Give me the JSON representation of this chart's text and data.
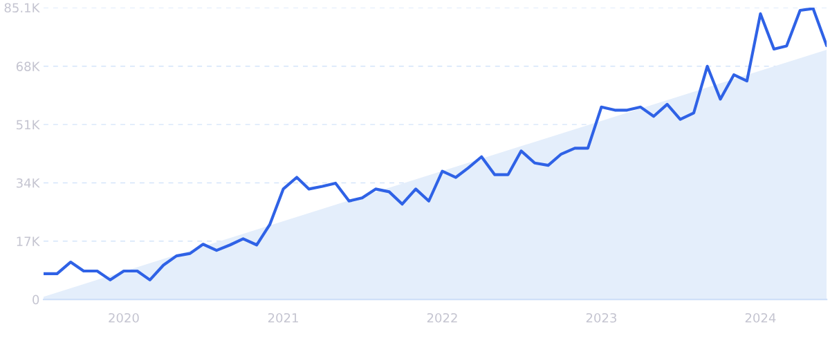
{
  "chart_data": {
    "type": "line",
    "x": [
      "2019-07",
      "2019-08",
      "2019-09",
      "2019-10",
      "2019-11",
      "2019-12",
      "2020-01",
      "2020-02",
      "2020-03",
      "2020-04",
      "2020-05",
      "2020-06",
      "2020-07",
      "2020-08",
      "2020-09",
      "2020-10",
      "2020-11",
      "2020-12",
      "2021-01",
      "2021-02",
      "2021-03",
      "2021-04",
      "2021-05",
      "2021-06",
      "2021-07",
      "2021-08",
      "2021-09",
      "2021-10",
      "2021-11",
      "2021-12",
      "2022-01",
      "2022-02",
      "2022-03",
      "2022-04",
      "2022-05",
      "2022-06",
      "2022-07",
      "2022-08",
      "2022-09",
      "2022-10",
      "2022-11",
      "2022-12",
      "2023-01",
      "2023-02",
      "2023-03",
      "2023-04",
      "2023-05",
      "2023-06",
      "2023-07",
      "2023-08",
      "2023-09",
      "2023-10",
      "2023-11",
      "2023-12",
      "2024-01",
      "2024-02",
      "2024-03",
      "2024-04",
      "2024-05",
      "2024-06"
    ],
    "series": [
      {
        "type": "area",
        "color": "#e4eefb",
        "x": [
          "2019-07",
          "2024-06"
        ],
        "values": [
          800,
          72800
        ]
      },
      {
        "color": "#2f62e6",
        "values": [
          7500,
          7500,
          10900,
          8300,
          8300,
          5700,
          8300,
          8300,
          5700,
          10000,
          12700,
          13400,
          16100,
          14300,
          15900,
          17700,
          15900,
          21800,
          32200,
          35600,
          32200,
          33000,
          33900,
          28700,
          29600,
          32200,
          31400,
          27800,
          32200,
          28700,
          37400,
          35600,
          38300,
          41600,
          36400,
          36400,
          43300,
          39800,
          39100,
          42400,
          44100,
          44100,
          56100,
          55200,
          55200,
          56100,
          53400,
          56900,
          52500,
          54400,
          68000,
          58400,
          65500,
          63700,
          83300,
          73000,
          73900,
          84300,
          84800,
          74000
        ]
      }
    ],
    "xlim": [
      "2019-07",
      "2024-06"
    ],
    "xticks": [
      {
        "value": "2020-01",
        "label": "2020"
      },
      {
        "value": "2021-01",
        "label": "2021"
      },
      {
        "value": "2022-01",
        "label": "2022"
      },
      {
        "value": "2023-01",
        "label": "2023"
      },
      {
        "value": "2024-01",
        "label": "2024"
      }
    ],
    "ylim": [
      0,
      85100
    ],
    "yticks": [
      {
        "value": 0,
        "label": "0"
      },
      {
        "value": 17000,
        "label": "17K"
      },
      {
        "value": 34000,
        "label": "34K"
      },
      {
        "value": 51000,
        "label": "51K"
      },
      {
        "value": 68000,
        "label": "68K"
      },
      {
        "value": 85100,
        "label": "85.1K"
      }
    ],
    "grid": "y",
    "line_style": "solid",
    "marker": "none"
  }
}
